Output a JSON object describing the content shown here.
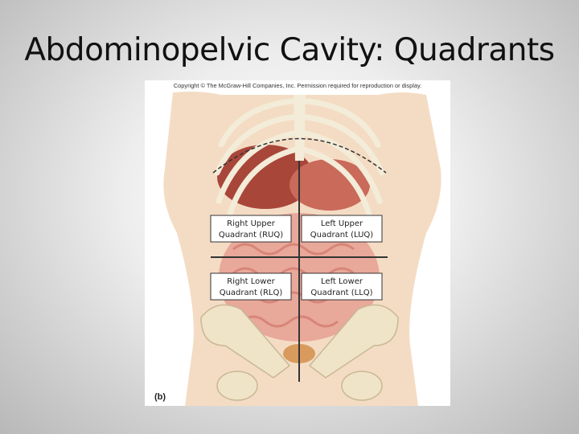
{
  "slide": {
    "title": "Abdominopelvic Cavity: Quadrants",
    "figure": {
      "copyright": "Copyright © The McGraw-Hill Companies, Inc. Permission required for reproduction or display.",
      "panel_label": "(b)",
      "quadrants": [
        {
          "lines": [
            "Right Upper",
            "Quadrant (RUQ)"
          ]
        },
        {
          "lines": [
            "Left Upper",
            "Quadrant (LUQ)"
          ]
        },
        {
          "lines": [
            "Right Lower",
            "Quadrant (RLQ)"
          ]
        },
        {
          "lines": [
            "Left Lower",
            "Quadrant (LLQ)"
          ]
        }
      ]
    }
  }
}
